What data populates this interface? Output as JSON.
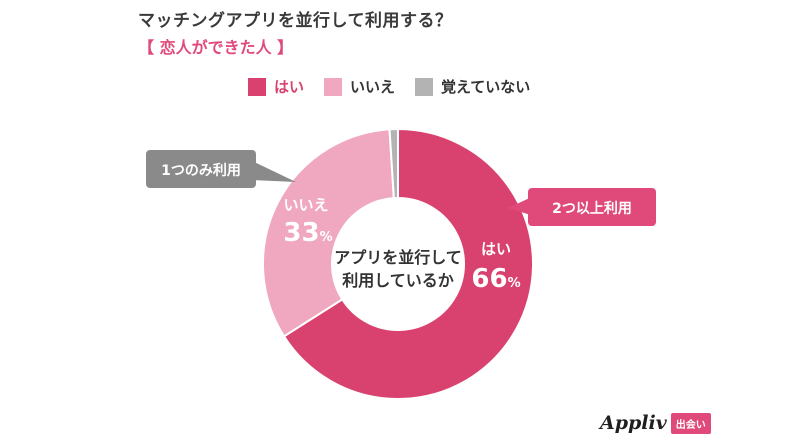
{
  "page": {
    "title": "マッチングアプリを並行して利用する？",
    "subtitle": "【 恋人ができた人 】"
  },
  "colors": {
    "accent": "#e04a7a",
    "yes": "#d9426f",
    "no": "#efa8c0",
    "unknown": "#b3b3b3",
    "callout_left": "#8a8a8a",
    "callout_right": "#e04a7a"
  },
  "chart_data": {
    "type": "pie",
    "donut": true,
    "title": "マッチングアプリを並行して利用する？",
    "subtitle": "【 恋人ができた人 】",
    "center_label": [
      "アプリを並行して",
      "利用しているか"
    ],
    "legend": [
      "はい",
      "いいえ",
      "覚えていない"
    ],
    "legend_position": "top",
    "unit": "%",
    "slices": [
      {
        "label": "はい",
        "value": 66,
        "color": "#d9426f",
        "value_text": "66",
        "unit": "%"
      },
      {
        "label": "いいえ",
        "value": 33,
        "color": "#efa8c0",
        "value_text": "33",
        "unit": "%"
      },
      {
        "label": "覚えていない",
        "value": 1,
        "color": "#b3b3b3"
      }
    ],
    "callouts": [
      {
        "text": "2つ以上利用",
        "target": "はい",
        "color": "#e04a7a"
      },
      {
        "text": "1つのみ利用",
        "target": "いいえ",
        "color": "#8a8a8a"
      }
    ]
  },
  "logo": {
    "brand": "Appliv",
    "badge": "出会い"
  }
}
